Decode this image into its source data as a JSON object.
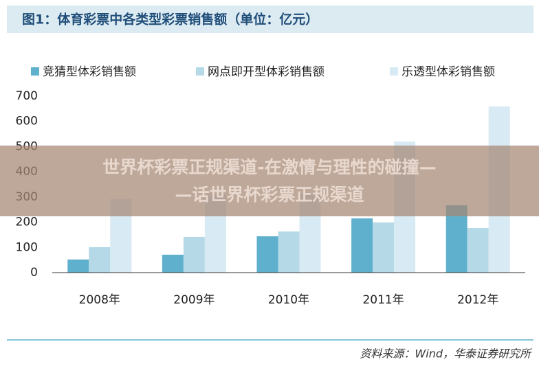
{
  "chart_data": {
    "type": "bar",
    "title": "图1：体育彩票中各类型彩票销售额（单位：亿元）",
    "categories": [
      "2008年",
      "2009年",
      "2010年",
      "2011年",
      "2012年"
    ],
    "series": [
      {
        "name": "竞猜型体彩销售额",
        "color": "#5eb0cd",
        "values": [
          52,
          71,
          144,
          215,
          267
        ]
      },
      {
        "name": "网点即开型体彩销售额",
        "color": "#b5d9e7",
        "values": [
          101,
          142,
          163,
          199,
          177
        ]
      },
      {
        "name": "乐透型体彩销售额",
        "color": "#d8eaf3",
        "values": [
          292,
          310,
          310,
          520,
          659
        ]
      }
    ],
    "ylim": [
      0,
      700
    ],
    "yticks": [
      0,
      100,
      200,
      300,
      400,
      500,
      600,
      700
    ],
    "source": "资料来源：Wind，华泰证券研究所",
    "watermark": [
      "世界杯彩票正规渠道-在激情与理性的碰撞—",
      "—话世界杯彩票正规渠道"
    ]
  }
}
